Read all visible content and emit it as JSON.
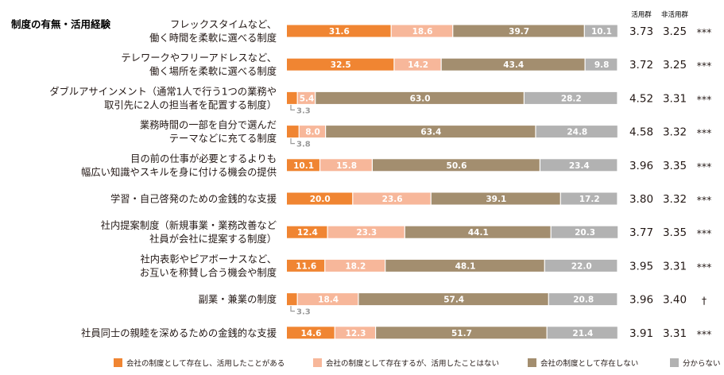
{
  "colors": {
    "used": "#F08532",
    "exists_not_used": "#F7B79A",
    "not_exists": "#A38E6F",
    "unknown": "#B2B2B2",
    "title": "#6B57A5",
    "label": "#231815",
    "seg_text_light": "#ffffff",
    "seg_text_dark": "#ffffff",
    "callout_text": "#9A9A9A"
  },
  "chart_data": {
    "type": "stacked-bar-horizontal",
    "title": "制度の有無・活用経験",
    "column_headers": [
      "活用群",
      "非活用群"
    ],
    "xlim": [
      0,
      100
    ],
    "legend": [
      "会社の制度として存在し、活用したことがある",
      "会社の制度として存在するが、活用したことはない",
      "会社の制度として存在しない",
      "分からない"
    ],
    "categories": [
      [
        "フレックスタイムなど、",
        "働く時間を柔軟に選べる制度"
      ],
      [
        "テレワークやフリーアドレスなど、",
        "働く場所を柔軟に選べる制度"
      ],
      [
        "ダブルアサインメント（通常1人で行う1つの業務や",
        "取引先に2人の担当者を配置する制度）"
      ],
      [
        "業務時間の一部を自分で選んだ",
        "テーマなどに充てる制度"
      ],
      [
        "目の前の仕事が必要とするよりも",
        "幅広い知識やスキルを身に付ける機会の提供"
      ],
      [
        "学習・自己啓発のための金銭的な支援"
      ],
      [
        "社内提案制度（新規事業・業務改善など",
        "社員が会社に提案する制度）"
      ],
      [
        "社内表彰やピアボーナスなど、",
        "お互いを称賛し合う機会や制度"
      ],
      [
        "副業・兼業の制度"
      ],
      [
        "社員同士の親睦を深めるための金銭的な支援"
      ]
    ],
    "series": [
      {
        "name": "会社の制度として存在し、活用したことがある",
        "values": [
          31.6,
          32.5,
          3.3,
          3.8,
          10.1,
          20.0,
          12.4,
          11.6,
          3.3,
          14.6
        ]
      },
      {
        "name": "会社の制度として存在するが、活用したことはない",
        "values": [
          18.6,
          14.2,
          5.4,
          8.0,
          15.8,
          23.6,
          23.3,
          18.2,
          18.4,
          12.3
        ]
      },
      {
        "name": "会社の制度として存在しない",
        "values": [
          39.7,
          43.4,
          63.0,
          63.4,
          50.6,
          39.1,
          44.1,
          48.1,
          57.4,
          51.7
        ]
      },
      {
        "name": "分からない",
        "values": [
          10.1,
          9.8,
          28.2,
          24.8,
          23.4,
          17.2,
          20.3,
          22.0,
          20.8,
          21.4
        ]
      }
    ],
    "callouts": [
      "3.3",
      "3.8",
      "3.3"
    ],
    "seg_labels": [
      [
        "31.6",
        "18.6",
        "39.7",
        "10.1"
      ],
      [
        "32.5",
        "14.2",
        "43.4",
        "9.8"
      ],
      [
        "",
        "5.4",
        "63.0",
        "28.2"
      ],
      [
        "",
        "8.0",
        "63.4",
        "24.8"
      ],
      [
        "10.1",
        "15.8",
        "50.6",
        "23.4"
      ],
      [
        "20.0",
        "23.6",
        "39.1",
        "17.2"
      ],
      [
        "12.4",
        "23.3",
        "44.1",
        "20.3"
      ],
      [
        "11.6",
        "18.2",
        "48.1",
        "22.0"
      ],
      [
        "",
        "18.4",
        "57.4",
        "20.8"
      ],
      [
        "14.6",
        "12.3",
        "51.7",
        "21.4"
      ]
    ],
    "callout_rows": [
      2,
      3,
      8
    ],
    "used_group_scores": [
      "3.73",
      "3.72",
      "4.52",
      "4.58",
      "3.96",
      "3.80",
      "3.77",
      "3.95",
      "3.96",
      "3.91"
    ],
    "unused_group_scores": [
      "3.25",
      "3.25",
      "3.31",
      "3.32",
      "3.35",
      "3.32",
      "3.35",
      "3.31",
      "3.40",
      "3.31"
    ],
    "significance": [
      "***",
      "***",
      "***",
      "***",
      "***",
      "***",
      "***",
      "***",
      "†",
      "***"
    ]
  }
}
